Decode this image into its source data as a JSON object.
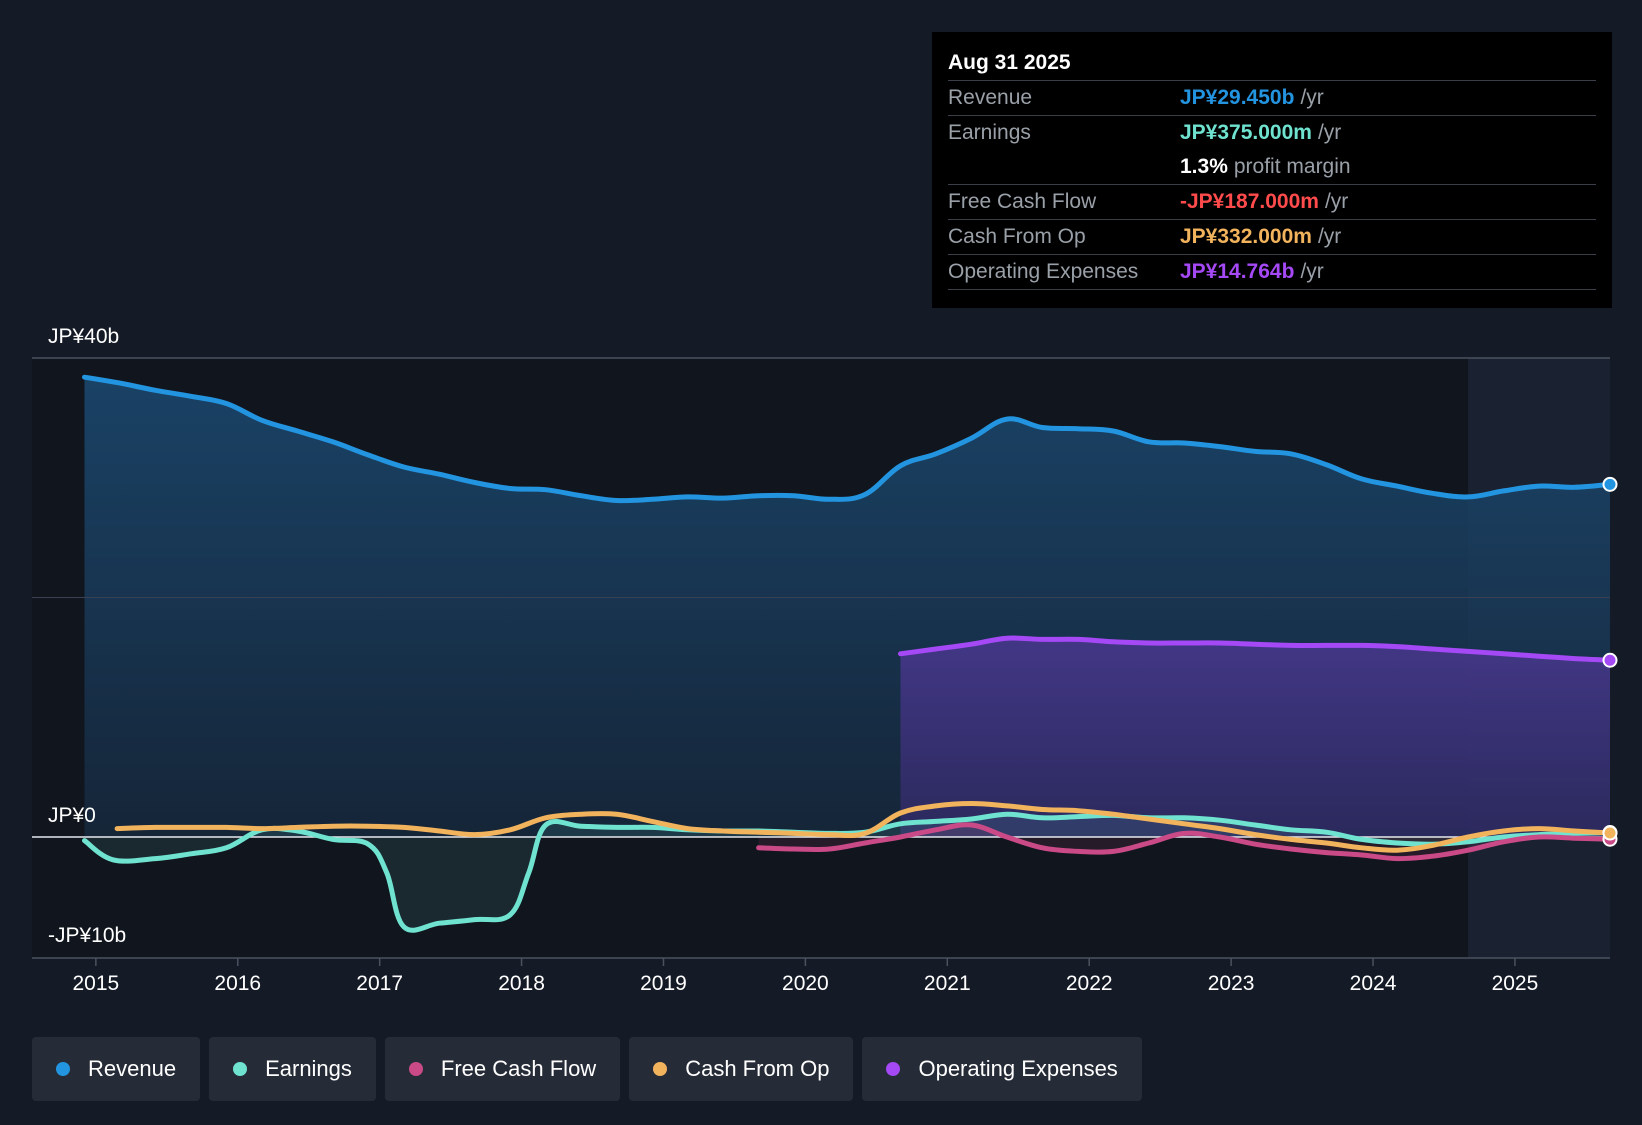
{
  "tooltip": {
    "date": "Aug 31 2025",
    "rows": {
      "revenue": {
        "label": "Revenue",
        "value": "JP¥29.450b",
        "unit": "/yr",
        "color": "#2394df"
      },
      "earnings": {
        "label": "Earnings",
        "value": "JP¥375.000m",
        "unit": "/yr",
        "color": "#6fe3d0"
      },
      "margin": {
        "value": "1.3%",
        "text": "profit margin"
      },
      "fcf": {
        "label": "Free Cash Flow",
        "value": "-JP¥187.000m",
        "unit": "/yr",
        "color": "#ff4b4b"
      },
      "cfo": {
        "label": "Cash From Op",
        "value": "JP¥332.000m",
        "unit": "/yr",
        "color": "#f2b35d"
      },
      "opex": {
        "label": "Operating Expenses",
        "value": "JP¥14.764b",
        "unit": "/yr",
        "color": "#a449f5"
      }
    }
  },
  "legend": [
    {
      "label": "Revenue",
      "color": "#2394df"
    },
    {
      "label": "Earnings",
      "color": "#6fe3d0"
    },
    {
      "label": "Free Cash Flow",
      "color": "#c94a87"
    },
    {
      "label": "Cash From Op",
      "color": "#f2b35d"
    },
    {
      "label": "Operating Expenses",
      "color": "#a449f5"
    }
  ],
  "chart_data": {
    "type": "line",
    "title": "",
    "ylabel": "",
    "xlabel": "",
    "ylim": [
      -10,
      40
    ],
    "y_tick_labels": [
      "JP¥40b",
      "JP¥0",
      "-JP¥10b"
    ],
    "y_tick_values": [
      40,
      0,
      -10
    ],
    "x_range": [
      2014.55,
      2025.67
    ],
    "x_ticks": [
      2015,
      2016,
      2017,
      2018,
      2019,
      2020,
      2021,
      2022,
      2023,
      2024,
      2025
    ],
    "forecast_start": 2024.67,
    "series": [
      {
        "name": "Revenue",
        "color": "#2394df",
        "fill": true,
        "x": [
          2014.92,
          2015.17,
          2015.42,
          2015.67,
          2015.92,
          2016.17,
          2016.42,
          2016.67,
          2016.92,
          2017.17,
          2017.42,
          2017.67,
          2017.92,
          2018.17,
          2018.42,
          2018.67,
          2018.92,
          2019.17,
          2019.42,
          2019.67,
          2019.92,
          2020.17,
          2020.42,
          2020.67,
          2020.92,
          2021.17,
          2021.42,
          2021.67,
          2021.92,
          2022.17,
          2022.42,
          2022.67,
          2022.92,
          2023.17,
          2023.42,
          2023.67,
          2023.92,
          2024.17,
          2024.42,
          2024.67,
          2024.92,
          2025.17,
          2025.42,
          2025.67
        ],
        "values": [
          38.4,
          37.9,
          37.3,
          36.8,
          36.2,
          34.8,
          33.9,
          33.0,
          31.9,
          30.9,
          30.3,
          29.6,
          29.1,
          29.0,
          28.5,
          28.1,
          28.2,
          28.4,
          28.3,
          28.5,
          28.5,
          28.2,
          28.6,
          31.0,
          32.0,
          33.3,
          34.9,
          34.2,
          34.1,
          33.9,
          33.0,
          32.9,
          32.6,
          32.2,
          32.0,
          31.1,
          29.9,
          29.3,
          28.7,
          28.4,
          28.9,
          29.3,
          29.2,
          29.45
        ]
      },
      {
        "name": "Operating Expenses",
        "color": "#a449f5",
        "fill": true,
        "x": [
          2020.67,
          2020.92,
          2021.17,
          2021.42,
          2021.67,
          2021.92,
          2022.17,
          2022.42,
          2022.67,
          2022.92,
          2023.17,
          2023.42,
          2023.67,
          2023.92,
          2024.17,
          2024.42,
          2024.67,
          2024.92,
          2025.17,
          2025.42,
          2025.67
        ],
        "values": [
          15.3,
          15.7,
          16.1,
          16.6,
          16.5,
          16.5,
          16.3,
          16.2,
          16.2,
          16.2,
          16.1,
          16.0,
          16.0,
          16.0,
          15.9,
          15.7,
          15.5,
          15.3,
          15.1,
          14.9,
          14.76
        ]
      },
      {
        "name": "Earnings",
        "color": "#6fe3d0",
        "fill": true,
        "x": [
          2014.92,
          2015.12,
          2015.42,
          2015.67,
          2015.92,
          2016.17,
          2016.42,
          2016.67,
          2016.92,
          2017.05,
          2017.17,
          2017.42,
          2017.67,
          2017.92,
          2018.05,
          2018.17,
          2018.42,
          2018.67,
          2018.92,
          2019.17,
          2019.42,
          2019.67,
          2019.92,
          2020.17,
          2020.42,
          2020.67,
          2020.92,
          2021.17,
          2021.42,
          2021.67,
          2021.92,
          2022.17,
          2022.42,
          2022.67,
          2022.92,
          2023.17,
          2023.42,
          2023.67,
          2023.92,
          2024.17,
          2024.42,
          2024.67,
          2024.92,
          2025.17,
          2025.42,
          2025.67
        ],
        "values": [
          -0.3,
          -1.9,
          -1.8,
          -1.4,
          -0.9,
          0.6,
          0.5,
          -0.2,
          -0.6,
          -3.0,
          -7.5,
          -7.2,
          -6.9,
          -6.5,
          -3.0,
          1.0,
          0.9,
          0.8,
          0.8,
          0.6,
          0.5,
          0.5,
          0.4,
          0.3,
          0.4,
          1.1,
          1.3,
          1.5,
          1.9,
          1.6,
          1.7,
          1.8,
          1.6,
          1.6,
          1.4,
          1.0,
          0.6,
          0.4,
          -0.2,
          -0.5,
          -0.6,
          -0.4,
          0.0,
          0.2,
          0.3,
          0.375
        ]
      },
      {
        "name": "Free Cash Flow",
        "color": "#c94a87",
        "fill": true,
        "x": [
          2019.67,
          2019.92,
          2020.17,
          2020.42,
          2020.67,
          2020.92,
          2021.17,
          2021.42,
          2021.67,
          2021.92,
          2022.17,
          2022.42,
          2022.67,
          2022.92,
          2023.17,
          2023.42,
          2023.67,
          2023.92,
          2024.17,
          2024.42,
          2024.67,
          2024.92,
          2025.17,
          2025.42,
          2025.67
        ],
        "values": [
          -0.9,
          -1.0,
          -1.0,
          -0.5,
          0.0,
          0.6,
          1.0,
          0.0,
          -0.9,
          -1.2,
          -1.2,
          -0.5,
          0.3,
          0.0,
          -0.6,
          -1.0,
          -1.3,
          -1.5,
          -1.8,
          -1.6,
          -1.1,
          -0.4,
          0.0,
          -0.1,
          -0.187
        ]
      },
      {
        "name": "Cash From Op",
        "color": "#f2b35d",
        "fill": false,
        "x": [
          2015.15,
          2015.42,
          2015.67,
          2015.92,
          2016.17,
          2016.42,
          2016.67,
          2016.92,
          2017.17,
          2017.42,
          2017.67,
          2017.92,
          2018.17,
          2018.42,
          2018.67,
          2018.92,
          2019.17,
          2019.42,
          2019.67,
          2019.92,
          2020.17,
          2020.42,
          2020.67,
          2020.92,
          2021.17,
          2021.42,
          2021.67,
          2021.92,
          2022.17,
          2022.42,
          2022.67,
          2022.92,
          2023.17,
          2023.42,
          2023.67,
          2023.92,
          2024.17,
          2024.42,
          2024.67,
          2024.92,
          2025.17,
          2025.42,
          2025.67
        ],
        "values": [
          0.7,
          0.8,
          0.8,
          0.8,
          0.7,
          0.8,
          0.9,
          0.9,
          0.8,
          0.5,
          0.2,
          0.6,
          1.6,
          1.9,
          1.9,
          1.3,
          0.7,
          0.5,
          0.4,
          0.3,
          0.2,
          0.3,
          2.0,
          2.6,
          2.8,
          2.6,
          2.3,
          2.2,
          1.9,
          1.5,
          1.1,
          0.7,
          0.2,
          -0.2,
          -0.5,
          -0.9,
          -1.1,
          -0.7,
          0.0,
          0.5,
          0.7,
          0.5,
          0.332
        ]
      }
    ]
  }
}
